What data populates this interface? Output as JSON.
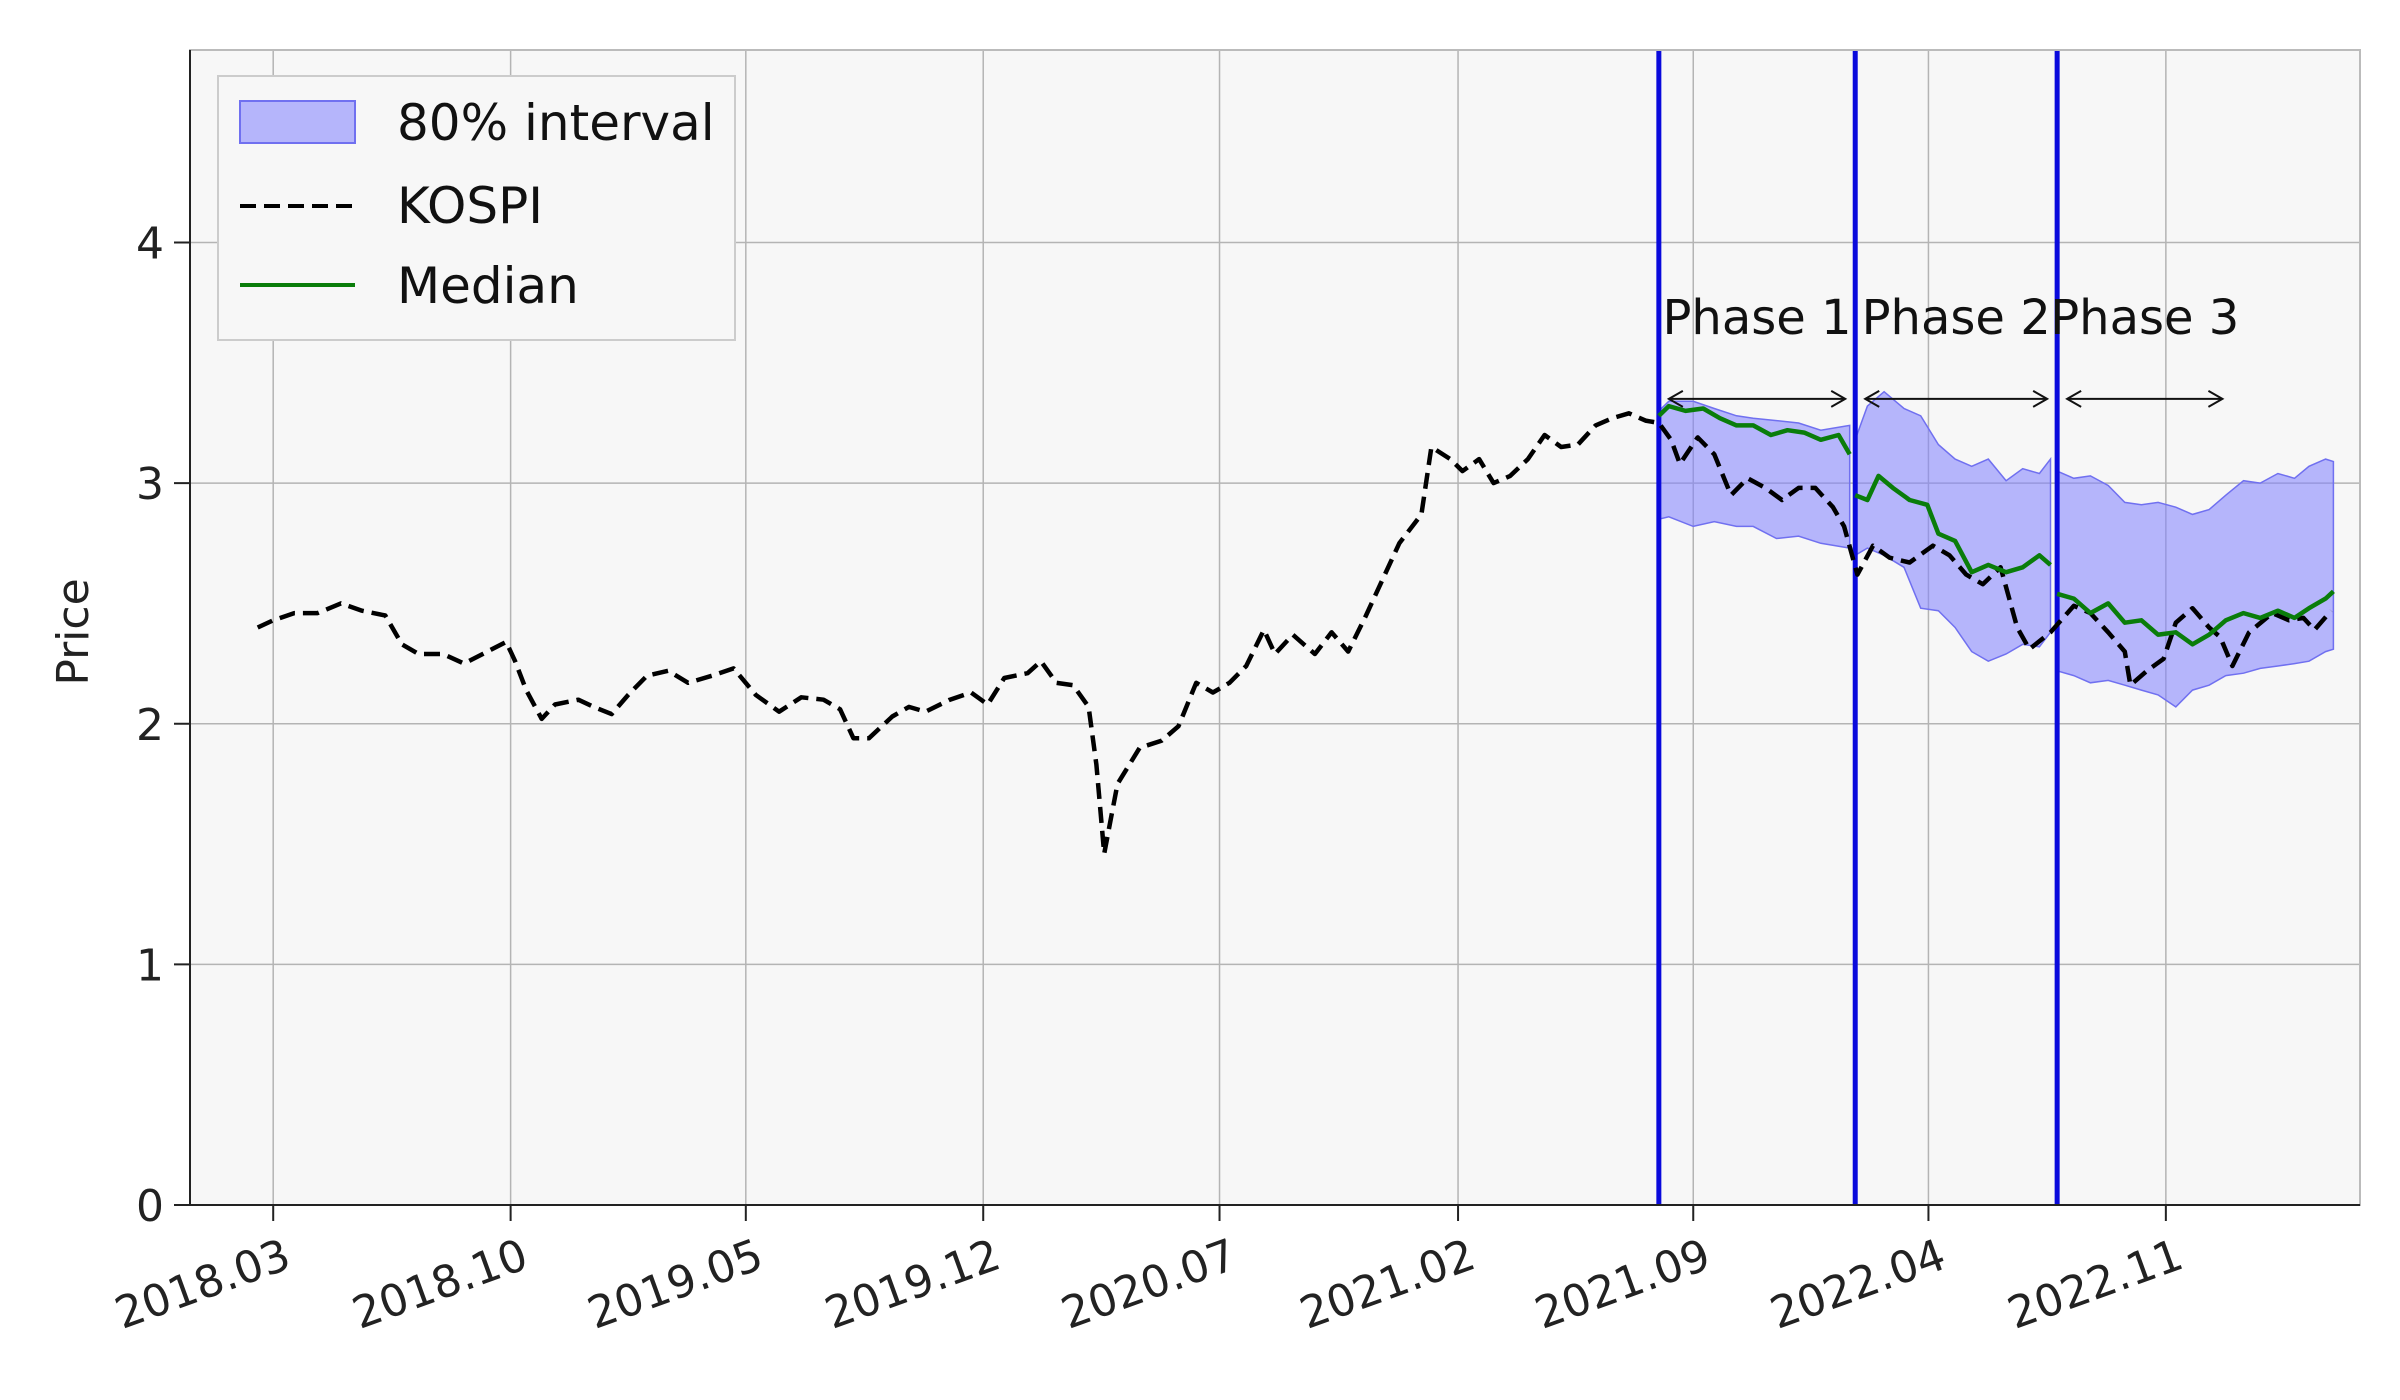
{
  "chart_data": {
    "type": "line",
    "xlabel": "",
    "ylabel": "Price",
    "ylim": [
      0,
      4.8
    ],
    "yticks": [
      0,
      1,
      2,
      3,
      4
    ],
    "xlim": [
      "2017-12-16",
      "2023-04-25"
    ],
    "xticks": [
      {
        "date": "2018-03-01",
        "label": "2018.03"
      },
      {
        "date": "2018-10-01",
        "label": "2018.10"
      },
      {
        "date": "2019-05-01",
        "label": "2019.05"
      },
      {
        "date": "2019-12-01",
        "label": "2019.12"
      },
      {
        "date": "2020-07-01",
        "label": "2020.07"
      },
      {
        "date": "2021-02-01",
        "label": "2021.02"
      },
      {
        "date": "2021-09-01",
        "label": "2021.09"
      },
      {
        "date": "2022-04-01",
        "label": "2022.04"
      },
      {
        "date": "2022-11-01",
        "label": "2022.11"
      }
    ],
    "grid": true,
    "legend_position": "top-left",
    "legend": [
      {
        "label": "80% interval",
        "kind": "band",
        "color": "#8080ff"
      },
      {
        "label": "KOSPI",
        "kind": "dashed",
        "color": "#000000"
      },
      {
        "label": "Median",
        "kind": "line",
        "color": "#0a7d0a"
      }
    ],
    "phase_boundaries": [
      "2021-08-01",
      "2022-01-25",
      "2022-07-26"
    ],
    "phase_end": "2022-12-31",
    "phases": [
      {
        "label": "Phase 1",
        "start": "2021-08-01",
        "end": "2022-01-25"
      },
      {
        "label": "Phase 2",
        "start": "2022-01-25",
        "end": "2022-07-26"
      },
      {
        "label": "Phase 3",
        "start": "2022-07-26",
        "end": "2022-12-31"
      }
    ],
    "series": [
      {
        "name": "KOSPI",
        "color": "#000000",
        "style": "dashed",
        "points": [
          [
            "2018-02-15",
            2.4
          ],
          [
            "2018-03-01",
            2.43
          ],
          [
            "2018-03-20",
            2.46
          ],
          [
            "2018-04-10",
            2.46
          ],
          [
            "2018-05-01",
            2.5
          ],
          [
            "2018-05-20",
            2.47
          ],
          [
            "2018-06-10",
            2.45
          ],
          [
            "2018-06-25",
            2.33
          ],
          [
            "2018-07-10",
            2.29
          ],
          [
            "2018-08-01",
            2.29
          ],
          [
            "2018-08-20",
            2.25
          ],
          [
            "2018-09-10",
            2.3
          ],
          [
            "2018-09-27",
            2.34
          ],
          [
            "2018-10-05",
            2.26
          ],
          [
            "2018-10-15",
            2.14
          ],
          [
            "2018-10-29",
            2.02
          ],
          [
            "2018-11-10",
            2.08
          ],
          [
            "2018-12-01",
            2.1
          ],
          [
            "2018-12-15",
            2.07
          ],
          [
            "2018-12-31",
            2.04
          ],
          [
            "2019-01-15",
            2.12
          ],
          [
            "2019-02-01",
            2.2
          ],
          [
            "2019-02-20",
            2.22
          ],
          [
            "2019-03-10",
            2.17
          ],
          [
            "2019-04-01",
            2.2
          ],
          [
            "2019-04-20",
            2.23
          ],
          [
            "2019-05-10",
            2.12
          ],
          [
            "2019-05-31",
            2.05
          ],
          [
            "2019-06-20",
            2.11
          ],
          [
            "2019-07-10",
            2.1
          ],
          [
            "2019-07-25",
            2.06
          ],
          [
            "2019-08-06",
            1.94
          ],
          [
            "2019-08-20",
            1.94
          ],
          [
            "2019-09-10",
            2.03
          ],
          [
            "2019-09-25",
            2.07
          ],
          [
            "2019-10-10",
            2.05
          ],
          [
            "2019-11-01",
            2.1
          ],
          [
            "2019-11-20",
            2.13
          ],
          [
            "2019-12-05",
            2.08
          ],
          [
            "2019-12-20",
            2.19
          ],
          [
            "2020-01-10",
            2.21
          ],
          [
            "2020-01-22",
            2.26
          ],
          [
            "2020-02-05",
            2.17
          ],
          [
            "2020-02-20",
            2.16
          ],
          [
            "2020-03-05",
            2.07
          ],
          [
            "2020-03-12",
            1.83
          ],
          [
            "2020-03-19",
            1.46
          ],
          [
            "2020-03-31",
            1.75
          ],
          [
            "2020-04-20",
            1.9
          ],
          [
            "2020-05-10",
            1.93
          ],
          [
            "2020-05-25",
            1.99
          ],
          [
            "2020-06-10",
            2.17
          ],
          [
            "2020-06-25",
            2.13
          ],
          [
            "2020-07-10",
            2.17
          ],
          [
            "2020-07-25",
            2.24
          ],
          [
            "2020-08-10",
            2.39
          ],
          [
            "2020-08-20",
            2.29
          ],
          [
            "2020-09-05",
            2.37
          ],
          [
            "2020-09-25",
            2.29
          ],
          [
            "2020-10-10",
            2.38
          ],
          [
            "2020-10-25",
            2.3
          ],
          [
            "2020-11-10",
            2.45
          ],
          [
            "2020-11-25",
            2.6
          ],
          [
            "2020-12-10",
            2.75
          ],
          [
            "2020-12-30",
            2.87
          ],
          [
            "2021-01-08",
            3.15
          ],
          [
            "2021-01-25",
            3.1
          ],
          [
            "2021-02-05",
            3.05
          ],
          [
            "2021-02-20",
            3.1
          ],
          [
            "2021-03-05",
            3.0
          ],
          [
            "2021-03-20",
            3.03
          ],
          [
            "2021-04-05",
            3.1
          ],
          [
            "2021-04-20",
            3.2
          ],
          [
            "2021-05-05",
            3.15
          ],
          [
            "2021-05-20",
            3.16
          ],
          [
            "2021-06-05",
            3.24
          ],
          [
            "2021-06-20",
            3.27
          ],
          [
            "2021-07-05",
            3.29
          ],
          [
            "2021-07-20",
            3.26
          ],
          [
            "2021-08-01",
            3.25
          ],
          [
            "2021-08-12",
            3.18
          ],
          [
            "2021-08-20",
            3.08
          ],
          [
            "2021-09-05",
            3.19
          ],
          [
            "2021-09-20",
            3.12
          ],
          [
            "2021-10-05",
            2.95
          ],
          [
            "2021-10-20",
            3.02
          ],
          [
            "2021-11-05",
            2.98
          ],
          [
            "2021-11-20",
            2.93
          ],
          [
            "2021-12-05",
            2.98
          ],
          [
            "2021-12-20",
            2.98
          ],
          [
            "2022-01-05",
            2.9
          ],
          [
            "2022-01-15",
            2.82
          ],
          [
            "2022-01-27",
            2.62
          ],
          [
            "2022-02-10",
            2.74
          ],
          [
            "2022-02-25",
            2.69
          ],
          [
            "2022-03-15",
            2.67
          ],
          [
            "2022-04-05",
            2.74
          ],
          [
            "2022-04-20",
            2.7
          ],
          [
            "2022-05-05",
            2.62
          ],
          [
            "2022-05-20",
            2.58
          ],
          [
            "2022-06-05",
            2.65
          ],
          [
            "2022-06-20",
            2.4
          ],
          [
            "2022-07-01",
            2.31
          ],
          [
            "2022-07-20",
            2.38
          ],
          [
            "2022-08-10",
            2.49
          ],
          [
            "2022-08-25",
            2.46
          ],
          [
            "2022-09-10",
            2.38
          ],
          [
            "2022-09-25",
            2.3
          ],
          [
            "2022-09-30",
            2.16
          ],
          [
            "2022-10-15",
            2.22
          ],
          [
            "2022-10-30",
            2.27
          ],
          [
            "2022-11-10",
            2.42
          ],
          [
            "2022-11-25",
            2.48
          ],
          [
            "2022-12-10",
            2.4
          ],
          [
            "2022-12-20",
            2.36
          ],
          [
            "2022-12-31",
            2.24
          ],
          [
            "2023-01-15",
            2.38
          ],
          [
            "2023-02-05",
            2.46
          ],
          [
            "2023-02-20",
            2.43
          ],
          [
            "2023-03-05",
            2.44
          ],
          [
            "2023-03-15",
            2.39
          ],
          [
            "2023-03-30",
            2.47
          ]
        ]
      },
      {
        "name": "Median",
        "color": "#0a7d0a",
        "style": "solid",
        "points": [
          [
            "2021-08-01",
            3.28
          ],
          [
            "2021-08-10",
            3.32
          ],
          [
            "2021-08-25",
            3.3
          ],
          [
            "2021-09-10",
            3.31
          ],
          [
            "2021-09-25",
            3.27
          ],
          [
            "2021-10-10",
            3.24
          ],
          [
            "2021-10-25",
            3.24
          ],
          [
            "2021-11-10",
            3.2
          ],
          [
            "2021-11-25",
            3.22
          ],
          [
            "2021-12-10",
            3.21
          ],
          [
            "2021-12-25",
            3.18
          ],
          [
            "2022-01-10",
            3.2
          ],
          [
            "2022-01-20",
            3.12
          ],
          [
            "2022-01-25",
            2.95
          ],
          [
            "2022-02-05",
            2.93
          ],
          [
            "2022-02-15",
            3.03
          ],
          [
            "2022-02-28",
            2.98
          ],
          [
            "2022-03-15",
            2.93
          ],
          [
            "2022-03-31",
            2.91
          ],
          [
            "2022-04-10",
            2.79
          ],
          [
            "2022-04-25",
            2.76
          ],
          [
            "2022-05-10",
            2.63
          ],
          [
            "2022-05-25",
            2.66
          ],
          [
            "2022-06-10",
            2.63
          ],
          [
            "2022-06-25",
            2.65
          ],
          [
            "2022-07-10",
            2.7
          ],
          [
            "2022-07-20",
            2.66
          ],
          [
            "2022-07-26",
            2.54
          ],
          [
            "2022-08-10",
            2.52
          ],
          [
            "2022-08-25",
            2.46
          ],
          [
            "2022-09-10",
            2.5
          ],
          [
            "2022-09-25",
            2.42
          ],
          [
            "2022-10-10",
            2.43
          ],
          [
            "2022-10-25",
            2.37
          ],
          [
            "2022-11-10",
            2.38
          ],
          [
            "2022-11-25",
            2.33
          ],
          [
            "2022-12-10",
            2.37
          ],
          [
            "2022-12-25",
            2.43
          ],
          [
            "2023-01-10",
            2.46
          ],
          [
            "2023-01-25",
            2.44
          ],
          [
            "2023-02-10",
            2.47
          ],
          [
            "2023-02-25",
            2.44
          ],
          [
            "2023-03-10",
            2.48
          ],
          [
            "2023-03-25",
            2.52
          ],
          [
            "2023-04-01",
            2.55
          ]
        ]
      }
    ],
    "interval_80": [
      [
        "2021-08-01",
        2.85,
        3.3
      ],
      [
        "2021-08-10",
        2.86,
        3.34
      ],
      [
        "2021-09-01",
        2.82,
        3.34
      ],
      [
        "2021-09-20",
        2.84,
        3.31
      ],
      [
        "2021-10-10",
        2.82,
        3.28
      ],
      [
        "2021-10-25",
        2.82,
        3.27
      ],
      [
        "2021-11-15",
        2.77,
        3.26
      ],
      [
        "2021-12-05",
        2.78,
        3.25
      ],
      [
        "2021-12-25",
        2.75,
        3.22
      ],
      [
        "2022-01-20",
        2.73,
        3.24
      ],
      [
        "2022-01-25",
        2.7,
        3.18
      ],
      [
        "2022-02-05",
        2.73,
        3.32
      ],
      [
        "2022-02-20",
        2.7,
        3.38
      ],
      [
        "2022-03-10",
        2.65,
        3.31
      ],
      [
        "2022-03-25",
        2.48,
        3.28
      ],
      [
        "2022-04-10",
        2.47,
        3.16
      ],
      [
        "2022-04-25",
        2.4,
        3.1
      ],
      [
        "2022-05-10",
        2.3,
        3.07
      ],
      [
        "2022-05-25",
        2.26,
        3.1
      ],
      [
        "2022-06-10",
        2.29,
        3.01
      ],
      [
        "2022-06-25",
        2.33,
        3.06
      ],
      [
        "2022-07-10",
        2.32,
        3.04
      ],
      [
        "2022-07-20",
        2.38,
        3.1
      ],
      [
        "2022-07-26",
        2.22,
        3.05
      ],
      [
        "2022-08-10",
        2.2,
        3.02
      ],
      [
        "2022-08-25",
        2.17,
        3.03
      ],
      [
        "2022-09-10",
        2.18,
        2.99
      ],
      [
        "2022-09-25",
        2.16,
        2.92
      ],
      [
        "2022-10-10",
        2.14,
        2.91
      ],
      [
        "2022-10-25",
        2.12,
        2.92
      ],
      [
        "2022-11-10",
        2.07,
        2.9
      ],
      [
        "2022-11-25",
        2.14,
        2.87
      ],
      [
        "2022-12-10",
        2.16,
        2.89
      ],
      [
        "2022-12-25",
        2.2,
        2.95
      ],
      [
        "2023-01-10",
        2.21,
        3.01
      ],
      [
        "2023-01-25",
        2.23,
        3.0
      ],
      [
        "2023-02-10",
        2.24,
        3.04
      ],
      [
        "2023-02-25",
        2.25,
        3.02
      ],
      [
        "2023-03-10",
        2.26,
        3.07
      ],
      [
        "2023-03-25",
        2.3,
        3.1
      ],
      [
        "2023-04-01",
        2.31,
        3.09
      ]
    ]
  }
}
